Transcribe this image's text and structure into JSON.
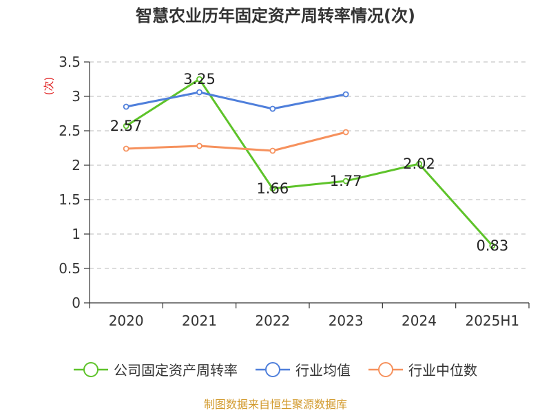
{
  "chart_title": "智慧农业历年固定资产周转率情况(次)",
  "source_note": "制图数据来自恒生聚源数据库",
  "chart_data": {
    "type": "line",
    "title": "智慧农业历年固定资产周转率情况(次)",
    "ylabel": "(次)",
    "xlabel": "",
    "categories": [
      "2020",
      "2021",
      "2022",
      "2023",
      "2024",
      "2025H1"
    ],
    "ylim": [
      0,
      3.5
    ],
    "yticks": [
      0,
      0.5,
      1,
      1.5,
      2,
      2.5,
      3,
      3.5
    ],
    "ytick_labels": [
      "0",
      "0.5",
      "1",
      "1.5",
      "2",
      "2.5",
      "3",
      "3.5"
    ],
    "grid": true,
    "legend_position": "bottom",
    "series": [
      {
        "name": "公司固定资产周转率",
        "color": "#5ec32a",
        "values": [
          2.57,
          3.25,
          1.66,
          1.77,
          2.02,
          0.83
        ],
        "data_labels": [
          "2.57",
          "3.25",
          "1.66",
          "1.77",
          "2.02",
          "0.83"
        ]
      },
      {
        "name": "行业均值",
        "color": "#4f7fdb",
        "values": [
          2.85,
          3.06,
          2.82,
          3.03,
          null,
          null
        ]
      },
      {
        "name": "行业中位数",
        "color": "#f6915d",
        "values": [
          2.24,
          2.28,
          2.21,
          2.48,
          null,
          null
        ]
      }
    ]
  }
}
